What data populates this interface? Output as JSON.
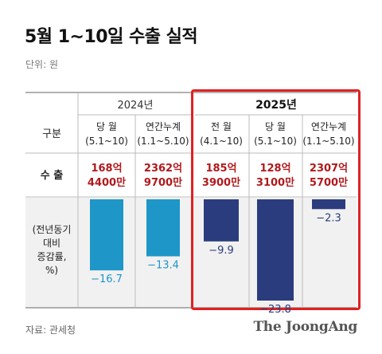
{
  "title": "5월 1~10일 수출 실적",
  "unit": "단위: 원",
  "source": "자료: 관세청",
  "brand": "The JoongAng",
  "colors": {
    "bar_2024": "#1e96c8",
    "bar_2025": "#2b3c7e",
    "highlight_border": "#e02222",
    "export_value": "#b0191d",
    "bar_area_bg": "#f1f1f1"
  },
  "table": {
    "row_label_category": "구분",
    "row_label_exports": "수 출",
    "row_label_change": [
      "(전년동기",
      "대비",
      "증감률,",
      "%)"
    ],
    "year_2024": "2024년",
    "year_2025": "2025년",
    "columns": [
      {
        "year": "2024",
        "label": "당 월",
        "range": "(5.1~10)",
        "export_line1": "168억",
        "export_line2": "4400만",
        "change_label": "−16.7"
      },
      {
        "year": "2024",
        "label": "연간누계",
        "range": "(1.1~5.10)",
        "export_line1": "2362억",
        "export_line2": "9700만",
        "change_label": "−13.4"
      },
      {
        "year": "2025",
        "label": "전 월",
        "range": "(4.1~10)",
        "export_line1": "185억",
        "export_line2": "3900만",
        "change_label": "−9.9"
      },
      {
        "year": "2025",
        "label": "당 월",
        "range": "(5.1~10)",
        "export_line1": "128억",
        "export_line2": "3100만",
        "change_label": "−23.8"
      },
      {
        "year": "2025",
        "label": "연간누계",
        "range": "(1.1~5.10)",
        "export_line1": "2307억",
        "export_line2": "5700만",
        "change_label": "−2.3"
      }
    ]
  },
  "chart_data": {
    "type": "bar",
    "categories": [
      "2024 당 월 (5.1~10)",
      "2024 연간누계 (1.1~5.10)",
      "2025 전 월 (4.1~10)",
      "2025 당 월 (5.1~10)",
      "2025 연간누계 (1.1~5.10)"
    ],
    "values": [
      -16.7,
      -13.4,
      -9.9,
      -23.8,
      -2.3
    ],
    "ylabel": "(전년동기 대비 증감률, %)",
    "ylim": [
      -23.8,
      0
    ]
  }
}
